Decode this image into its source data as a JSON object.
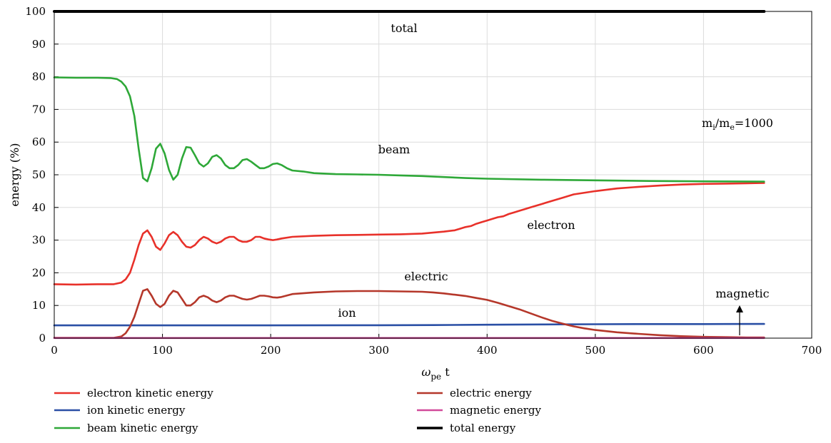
{
  "chart_data": {
    "type": "line",
    "xlabel_main": "ω",
    "xlabel_sub": "pe",
    "xlabel_tail": " t",
    "ylabel": "energy (%)",
    "xlim": [
      0,
      700
    ],
    "ylim": [
      0,
      100
    ],
    "xticks": [
      "0",
      "100",
      "200",
      "300",
      "400",
      "500",
      "600",
      "700"
    ],
    "yticks": [
      "0",
      "10",
      "20",
      "30",
      "40",
      "50",
      "60",
      "70",
      "80",
      "90",
      "100"
    ],
    "grid": true,
    "annotations": {
      "total": "total",
      "beam": "beam",
      "electron": "electron",
      "electric": "electric",
      "ion": "ion",
      "magnetic": "magnetic",
      "ratio_m1": "m",
      "ratio_i": "i",
      "ratio_slash": "/m",
      "ratio_e": "e",
      "ratio_val": "=1000"
    },
    "series": [
      {
        "key": "electron",
        "name": "electron kinetic energy",
        "color": "#e8312a",
        "x": [
          0,
          20,
          40,
          55,
          62,
          66,
          70,
          74,
          78,
          82,
          86,
          90,
          94,
          98,
          102,
          106,
          110,
          114,
          118,
          122,
          126,
          130,
          134,
          138,
          142,
          146,
          150,
          154,
          158,
          162,
          166,
          170,
          174,
          178,
          182,
          186,
          190,
          194,
          198,
          202,
          206,
          210,
          220,
          240,
          260,
          280,
          300,
          320,
          340,
          350,
          360,
          370,
          375,
          380,
          385,
          390,
          395,
          400,
          405,
          410,
          415,
          420,
          425,
          430,
          435,
          440,
          445,
          450,
          460,
          470,
          480,
          500,
          520,
          540,
          560,
          580,
          600,
          620,
          640,
          656
        ],
        "y": [
          16.5,
          16.4,
          16.5,
          16.5,
          17.0,
          18.0,
          20.0,
          24.0,
          28.5,
          32.0,
          33.0,
          31.0,
          28.0,
          27.0,
          29.0,
          31.5,
          32.5,
          31.5,
          29.5,
          28.0,
          27.7,
          28.5,
          30.0,
          31.0,
          30.5,
          29.5,
          29.0,
          29.5,
          30.5,
          31.0,
          31.0,
          30.0,
          29.5,
          29.5,
          30.0,
          31.0,
          31.0,
          30.5,
          30.2,
          30.0,
          30.2,
          30.5,
          31.0,
          31.3,
          31.5,
          31.6,
          31.7,
          31.8,
          32.0,
          32.3,
          32.6,
          33.0,
          33.5,
          34.0,
          34.3,
          35.0,
          35.5,
          36.0,
          36.5,
          37.0,
          37.3,
          38.0,
          38.5,
          39.0,
          39.5,
          40.0,
          40.5,
          41.0,
          42.0,
          43.0,
          44.0,
          45.0,
          45.8,
          46.3,
          46.7,
          47.0,
          47.2,
          47.3,
          47.4,
          47.5
        ]
      },
      {
        "key": "ion",
        "name": "ion kinetic energy",
        "color": "#2a4fa5",
        "x": [
          0,
          100,
          200,
          300,
          350,
          400,
          450,
          500,
          550,
          600,
          656
        ],
        "y": [
          3.9,
          3.9,
          3.9,
          3.95,
          4.0,
          4.1,
          4.2,
          4.25,
          4.3,
          4.3,
          4.35
        ]
      },
      {
        "key": "beam",
        "name": "beam kinetic energy",
        "color": "#2ea838",
        "x": [
          0,
          20,
          40,
          52,
          58,
          62,
          66,
          70,
          74,
          78,
          82,
          86,
          90,
          94,
          98,
          102,
          106,
          110,
          114,
          118,
          122,
          126,
          130,
          134,
          138,
          142,
          146,
          150,
          154,
          158,
          162,
          166,
          170,
          174,
          178,
          182,
          186,
          190,
          194,
          198,
          202,
          206,
          210,
          215,
          220,
          230,
          240,
          260,
          280,
          300,
          320,
          340,
          360,
          380,
          400,
          450,
          500,
          550,
          600,
          656
        ],
        "y": [
          79.8,
          79.7,
          79.7,
          79.6,
          79.3,
          78.5,
          77.0,
          74.0,
          68.0,
          58.0,
          49.0,
          48.0,
          52.0,
          58.0,
          59.5,
          56.5,
          51.5,
          48.5,
          50.0,
          55.0,
          58.5,
          58.3,
          56.0,
          53.5,
          52.5,
          53.5,
          55.5,
          56.0,
          55.0,
          53.0,
          52.0,
          52.0,
          53.0,
          54.5,
          54.8,
          54.0,
          53.0,
          52.0,
          52.0,
          52.5,
          53.3,
          53.5,
          53.0,
          52.0,
          51.3,
          51.0,
          50.5,
          50.2,
          50.1,
          50.0,
          49.8,
          49.6,
          49.3,
          49.0,
          48.8,
          48.5,
          48.3,
          48.1,
          48.0,
          47.9
        ]
      },
      {
        "key": "electric",
        "name": "electric energy",
        "color": "#b5372a",
        "x": [
          0,
          55,
          62,
          66,
          70,
          74,
          78,
          82,
          86,
          90,
          94,
          98,
          102,
          106,
          110,
          114,
          118,
          122,
          126,
          130,
          134,
          138,
          142,
          146,
          150,
          154,
          158,
          162,
          166,
          170,
          174,
          178,
          182,
          186,
          190,
          194,
          198,
          202,
          206,
          210,
          220,
          240,
          260,
          280,
          300,
          320,
          340,
          350,
          360,
          370,
          380,
          390,
          400,
          410,
          420,
          430,
          440,
          450,
          460,
          470,
          480,
          490,
          500,
          520,
          540,
          560,
          580,
          600,
          620,
          640,
          656
        ],
        "y": [
          0.1,
          0.1,
          0.5,
          1.5,
          3.5,
          6.5,
          10.5,
          14.5,
          15.0,
          13.0,
          10.5,
          9.5,
          10.5,
          13.0,
          14.5,
          14.0,
          12.0,
          10.0,
          10.0,
          11.0,
          12.5,
          13.0,
          12.5,
          11.5,
          11.0,
          11.5,
          12.5,
          13.0,
          13.0,
          12.5,
          12.0,
          11.8,
          12.0,
          12.5,
          13.0,
          13.0,
          12.8,
          12.5,
          12.4,
          12.6,
          13.5,
          14.0,
          14.3,
          14.4,
          14.4,
          14.3,
          14.2,
          14.0,
          13.7,
          13.3,
          12.9,
          12.3,
          11.7,
          10.8,
          9.8,
          8.8,
          7.6,
          6.4,
          5.3,
          4.4,
          3.6,
          3.0,
          2.5,
          1.8,
          1.3,
          0.9,
          0.6,
          0.4,
          0.3,
          0.2,
          0.2
        ]
      },
      {
        "key": "magnetic",
        "name": "magnetic energy",
        "color": "#d24a9a",
        "x": [
          0,
          100,
          200,
          300,
          400,
          500,
          600,
          656
        ],
        "y": [
          0.05,
          0.05,
          0.05,
          0.05,
          0.05,
          0.05,
          0.05,
          0.05
        ]
      },
      {
        "key": "total",
        "name": "total energy",
        "color": "#000000",
        "x": [
          0,
          100,
          200,
          300,
          400,
          500,
          600,
          656
        ],
        "y": [
          100,
          100,
          100,
          100,
          100,
          100,
          100,
          100
        ]
      }
    ]
  }
}
